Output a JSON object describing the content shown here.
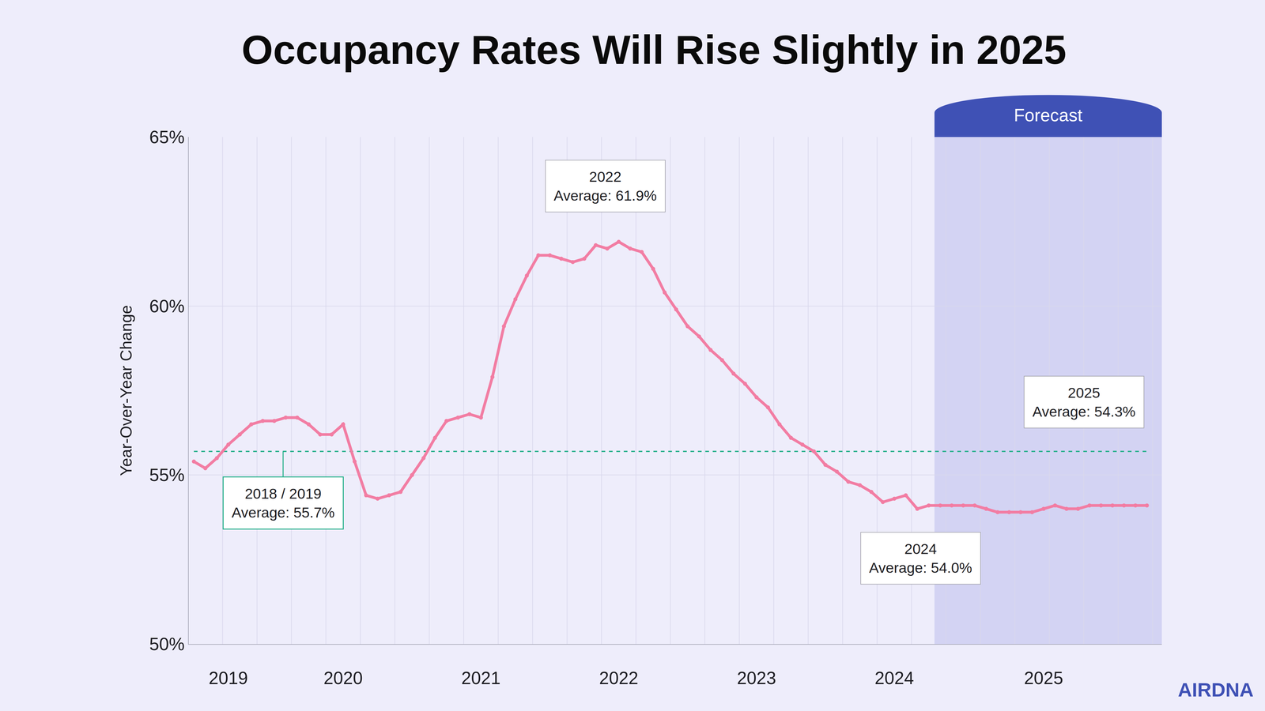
{
  "chart_data": {
    "type": "line",
    "title": "Occupancy Rates Will Rise Slightly in 2025",
    "y_label": "Year-Over-Year Change",
    "categories": [
      null,
      null,
      null,
      "2019",
      null,
      null,
      null,
      null,
      null,
      null,
      null,
      null,
      null,
      "2020",
      null,
      null,
      null,
      null,
      null,
      null,
      null,
      null,
      null,
      null,
      null,
      "2021",
      null,
      null,
      null,
      null,
      null,
      null,
      null,
      null,
      null,
      null,
      null,
      "2022",
      null,
      null,
      null,
      null,
      null,
      null,
      null,
      null,
      null,
      null,
      null,
      "2023",
      null,
      null,
      null,
      null,
      null,
      null,
      null,
      null,
      null,
      null,
      null,
      "2024",
      null,
      null,
      null,
      null,
      null,
      null,
      null,
      null,
      null,
      null,
      null,
      null,
      "2025",
      null,
      null,
      null,
      null,
      null,
      null,
      null,
      null,
      null
    ],
    "values": [
      55.4,
      55.2,
      55.5,
      55.9,
      56.2,
      56.5,
      56.6,
      56.6,
      56.7,
      56.7,
      56.5,
      56.2,
      56.2,
      56.5,
      55.4,
      54.4,
      54.3,
      54.4,
      54.5,
      55.0,
      55.5,
      56.1,
      56.6,
      56.7,
      56.8,
      56.7,
      57.9,
      59.4,
      60.2,
      60.9,
      61.5,
      61.5,
      61.4,
      61.3,
      61.4,
      61.8,
      61.7,
      61.9,
      61.7,
      61.6,
      61.1,
      60.4,
      59.9,
      59.4,
      59.1,
      58.7,
      58.4,
      58.0,
      57.7,
      57.3,
      57.0,
      56.5,
      56.1,
      55.9,
      55.7,
      55.3,
      55.1,
      54.8,
      54.7,
      54.5,
      54.2,
      54.3,
      54.4,
      54.0,
      54.1,
      54.1,
      54.1,
      54.1,
      54.1,
      54.0,
      53.9,
      53.9,
      53.9,
      53.9,
      54.0,
      54.1,
      54.0,
      54.0,
      54.1,
      54.1,
      54.1,
      54.1,
      54.1,
      54.1
    ],
    "color": "#F27DA3",
    "marker": "circle",
    "line_style": "solid",
    "ylim": [
      50,
      65
    ],
    "yticks": [
      {
        "value": 50,
        "label": "50%"
      },
      {
        "value": 55,
        "label": "55%"
      },
      {
        "value": 60,
        "label": "60%"
      },
      {
        "value": 65,
        "label": "65%"
      }
    ],
    "grid": true,
    "reference_line": {
      "value": 55.7,
      "color": "#27B08B",
      "line_style": "dash",
      "label": [
        "2018 / 2019",
        "Average: 55.7%"
      ]
    },
    "annotations": [
      {
        "text": [
          "2022",
          "Average: 61.9%"
        ]
      },
      {
        "text": [
          "2024",
          "Average: 54.0%"
        ]
      },
      {
        "text": [
          "2025",
          "Average: 54.3%"
        ]
      }
    ],
    "forecast": {
      "label": "Forecast",
      "start": 64.5,
      "color": "rgba(120,118,215,0.22)"
    },
    "logo": "AIRDNA"
  }
}
